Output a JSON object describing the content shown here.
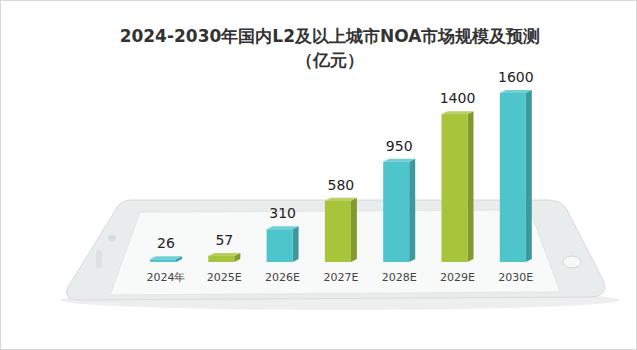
{
  "chart_data": {
    "type": "bar",
    "title": "2024-2030年国内L2及以上城市NOA市场规模及预测",
    "subtitle": "（亿元）",
    "categories": [
      "2024年",
      "2025E",
      "2026E",
      "2027E",
      "2028E",
      "2029E",
      "2030E"
    ],
    "values": [
      26,
      57,
      310,
      580,
      950,
      1400,
      1600
    ],
    "colors": [
      "#4ec4cb",
      "#a7c43b",
      "#4ec4cb",
      "#a7c43b",
      "#4ec4cb",
      "#a7c43b",
      "#4ec4cb"
    ],
    "ylim": [
      0,
      1600
    ],
    "data_labels": true,
    "tick_labels": "x",
    "grid": false
  }
}
